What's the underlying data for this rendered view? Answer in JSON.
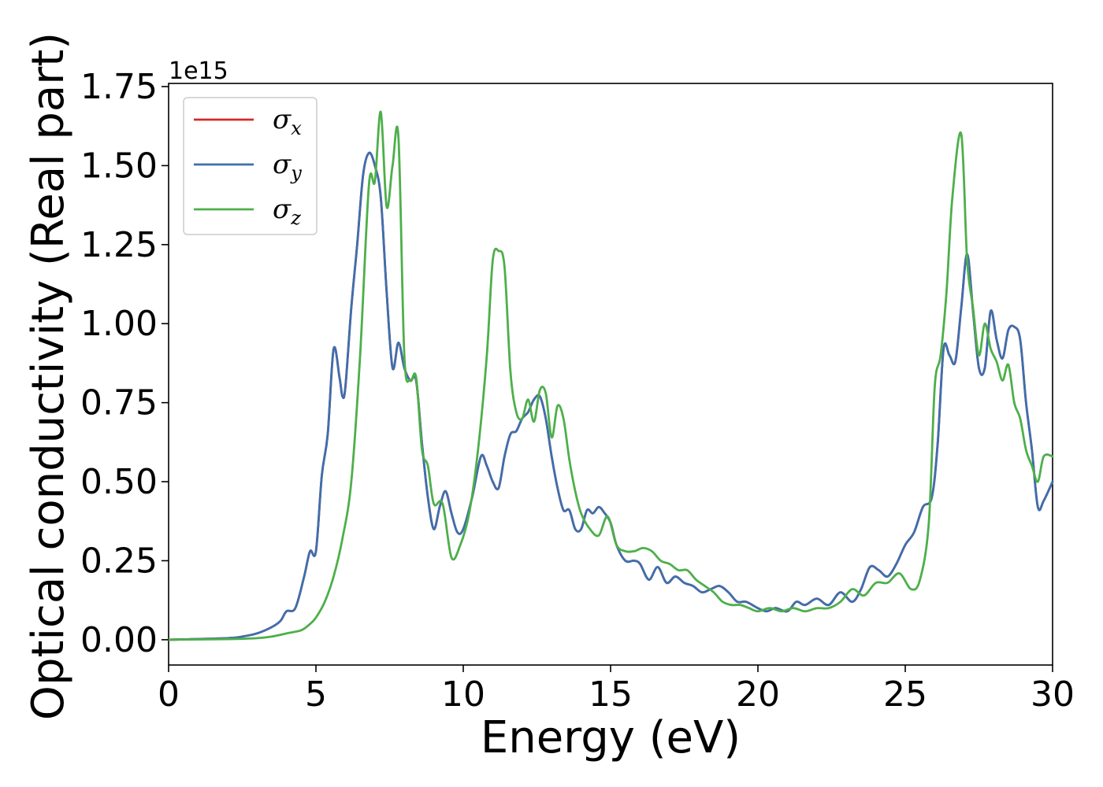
{
  "chart_data": {
    "type": "line",
    "title": "",
    "xlabel": "Energy (eV)",
    "ylabel": "Optical conductivity (Real part)",
    "y_offset_label": "1e15",
    "xlim": [
      0,
      30
    ],
    "ylim": [
      -0.08,
      1.76
    ],
    "xticks": [
      0,
      5,
      10,
      15,
      20,
      25,
      30
    ],
    "xtick_labels": [
      "0",
      "5",
      "10",
      "15",
      "20",
      "25",
      "30"
    ],
    "yticks": [
      0.0,
      0.25,
      0.5,
      0.75,
      1.0,
      1.25,
      1.5,
      1.75
    ],
    "ytick_labels": [
      "0.00",
      "0.25",
      "0.50",
      "0.75",
      "1.00",
      "1.25",
      "1.50",
      "1.75"
    ],
    "grid": false,
    "legend_position": "top-left",
    "series": [
      {
        "name": "σ_x",
        "legend_base": "σ",
        "legend_sub": "x",
        "color": "#d62728",
        "x": [
          0,
          2,
          2.5,
          3,
          3.5,
          3.8,
          4.0,
          4.3,
          4.6,
          4.8,
          5.0,
          5.2,
          5.4,
          5.6,
          5.8,
          5.9,
          6.0,
          6.2,
          6.4,
          6.6,
          6.8,
          7.0,
          7.2,
          7.4,
          7.6,
          7.8,
          8.0,
          8.2,
          8.4,
          8.6,
          8.8,
          9.0,
          9.2,
          9.4,
          9.6,
          9.8,
          10.0,
          10.3,
          10.6,
          10.8,
          11.0,
          11.2,
          11.4,
          11.6,
          11.8,
          12.0,
          12.2,
          12.4,
          12.6,
          12.8,
          13.0,
          13.2,
          13.4,
          13.6,
          13.8,
          14.0,
          14.2,
          14.4,
          14.6,
          14.8,
          15.0,
          15.2,
          15.5,
          15.8,
          16.0,
          16.3,
          16.6,
          16.9,
          17.2,
          17.5,
          17.8,
          18.1,
          18.4,
          18.7,
          19.0,
          19.3,
          19.6,
          20.0,
          20.3,
          20.6,
          21.0,
          21.3,
          21.6,
          22.0,
          22.4,
          22.8,
          23.2,
          23.5,
          23.8,
          24.1,
          24.4,
          24.7,
          25.0,
          25.3,
          25.6,
          25.9,
          26.1,
          26.3,
          26.5,
          26.7,
          26.9,
          27.1,
          27.3,
          27.5,
          27.7,
          27.9,
          28.1,
          28.3,
          28.5,
          28.7,
          28.9,
          29.1,
          29.3,
          29.5,
          29.7,
          30.0
        ],
        "values": [
          0.0,
          0.005,
          0.01,
          0.02,
          0.04,
          0.06,
          0.09,
          0.1,
          0.2,
          0.28,
          0.28,
          0.52,
          0.65,
          0.92,
          0.83,
          0.77,
          0.8,
          1.05,
          1.25,
          1.47,
          1.54,
          1.5,
          1.4,
          1.1,
          0.86,
          0.94,
          0.86,
          0.82,
          0.82,
          0.62,
          0.45,
          0.35,
          0.42,
          0.47,
          0.4,
          0.34,
          0.35,
          0.45,
          0.58,
          0.55,
          0.5,
          0.48,
          0.58,
          0.65,
          0.66,
          0.7,
          0.72,
          0.76,
          0.77,
          0.7,
          0.58,
          0.48,
          0.41,
          0.41,
          0.35,
          0.35,
          0.41,
          0.4,
          0.42,
          0.4,
          0.37,
          0.3,
          0.25,
          0.25,
          0.24,
          0.19,
          0.23,
          0.18,
          0.2,
          0.18,
          0.17,
          0.15,
          0.16,
          0.17,
          0.15,
          0.12,
          0.12,
          0.1,
          0.09,
          0.1,
          0.09,
          0.12,
          0.11,
          0.13,
          0.11,
          0.15,
          0.12,
          0.16,
          0.23,
          0.22,
          0.2,
          0.24,
          0.3,
          0.34,
          0.42,
          0.45,
          0.62,
          0.92,
          0.9,
          0.88,
          1.05,
          1.22,
          1.04,
          0.86,
          0.86,
          1.04,
          0.95,
          0.89,
          0.98,
          0.99,
          0.95,
          0.75,
          0.6,
          0.42,
          0.44,
          0.5
        ]
      },
      {
        "name": "σ_y",
        "legend_base": "σ",
        "legend_sub": "y",
        "color": "#3d6fae",
        "x": [
          0,
          2,
          2.5,
          3,
          3.5,
          3.8,
          4.0,
          4.3,
          4.6,
          4.8,
          5.0,
          5.2,
          5.4,
          5.6,
          5.8,
          5.9,
          6.0,
          6.2,
          6.4,
          6.6,
          6.8,
          7.0,
          7.2,
          7.4,
          7.6,
          7.8,
          8.0,
          8.2,
          8.4,
          8.6,
          8.8,
          9.0,
          9.2,
          9.4,
          9.6,
          9.8,
          10.0,
          10.3,
          10.6,
          10.8,
          11.0,
          11.2,
          11.4,
          11.6,
          11.8,
          12.0,
          12.2,
          12.4,
          12.6,
          12.8,
          13.0,
          13.2,
          13.4,
          13.6,
          13.8,
          14.0,
          14.2,
          14.4,
          14.6,
          14.8,
          15.0,
          15.2,
          15.5,
          15.8,
          16.0,
          16.3,
          16.6,
          16.9,
          17.2,
          17.5,
          17.8,
          18.1,
          18.4,
          18.7,
          19.0,
          19.3,
          19.6,
          20.0,
          20.3,
          20.6,
          21.0,
          21.3,
          21.6,
          22.0,
          22.4,
          22.8,
          23.2,
          23.5,
          23.8,
          24.1,
          24.4,
          24.7,
          25.0,
          25.3,
          25.6,
          25.9,
          26.1,
          26.3,
          26.5,
          26.7,
          26.9,
          27.1,
          27.3,
          27.5,
          27.7,
          27.9,
          28.1,
          28.3,
          28.5,
          28.7,
          28.9,
          29.1,
          29.3,
          29.5,
          29.7,
          30.0
        ],
        "values": [
          0.0,
          0.005,
          0.01,
          0.02,
          0.04,
          0.06,
          0.09,
          0.1,
          0.2,
          0.28,
          0.28,
          0.52,
          0.65,
          0.92,
          0.83,
          0.77,
          0.8,
          1.05,
          1.25,
          1.47,
          1.54,
          1.5,
          1.4,
          1.1,
          0.86,
          0.94,
          0.86,
          0.82,
          0.82,
          0.62,
          0.45,
          0.35,
          0.42,
          0.47,
          0.4,
          0.34,
          0.35,
          0.45,
          0.58,
          0.55,
          0.5,
          0.48,
          0.58,
          0.65,
          0.66,
          0.7,
          0.72,
          0.76,
          0.77,
          0.7,
          0.58,
          0.48,
          0.41,
          0.41,
          0.35,
          0.35,
          0.41,
          0.4,
          0.42,
          0.4,
          0.37,
          0.3,
          0.25,
          0.25,
          0.24,
          0.19,
          0.23,
          0.18,
          0.2,
          0.18,
          0.17,
          0.15,
          0.16,
          0.17,
          0.15,
          0.12,
          0.12,
          0.1,
          0.09,
          0.1,
          0.09,
          0.12,
          0.11,
          0.13,
          0.11,
          0.15,
          0.12,
          0.16,
          0.23,
          0.22,
          0.2,
          0.24,
          0.3,
          0.34,
          0.42,
          0.45,
          0.62,
          0.92,
          0.9,
          0.88,
          1.05,
          1.22,
          1.04,
          0.86,
          0.86,
          1.04,
          0.95,
          0.89,
          0.98,
          0.99,
          0.95,
          0.75,
          0.6,
          0.42,
          0.44,
          0.5
        ]
      },
      {
        "name": "σ_z",
        "legend_base": "σ",
        "legend_sub": "z",
        "color": "#4daf4a",
        "x": [
          0,
          2,
          3,
          3.5,
          4.0,
          4.5,
          4.8,
          5.0,
          5.3,
          5.6,
          5.9,
          6.2,
          6.5,
          6.8,
          7.0,
          7.2,
          7.4,
          7.6,
          7.8,
          8.0,
          8.2,
          8.4,
          8.6,
          8.8,
          9.0,
          9.3,
          9.6,
          9.9,
          10.2,
          10.5,
          10.8,
          11.0,
          11.2,
          11.4,
          11.6,
          11.8,
          12.0,
          12.2,
          12.4,
          12.6,
          12.8,
          13.0,
          13.2,
          13.4,
          13.6,
          13.8,
          14.0,
          14.3,
          14.6,
          14.9,
          15.2,
          15.5,
          15.8,
          16.1,
          16.4,
          16.7,
          17.0,
          17.3,
          17.6,
          17.9,
          18.2,
          18.5,
          18.8,
          19.1,
          19.4,
          19.7,
          20.0,
          20.4,
          20.8,
          21.2,
          21.6,
          22.0,
          22.4,
          22.8,
          23.2,
          23.6,
          24.0,
          24.4,
          24.8,
          25.2,
          25.5,
          25.8,
          26.0,
          26.2,
          26.4,
          26.6,
          26.9,
          27.1,
          27.3,
          27.5,
          27.7,
          27.9,
          28.1,
          28.3,
          28.5,
          28.7,
          28.9,
          29.1,
          29.3,
          29.5,
          29.7,
          30.0
        ],
        "values": [
          0.0,
          0.002,
          0.005,
          0.01,
          0.02,
          0.03,
          0.05,
          0.07,
          0.12,
          0.2,
          0.32,
          0.5,
          0.9,
          1.44,
          1.45,
          1.67,
          1.37,
          1.5,
          1.59,
          0.9,
          0.82,
          0.83,
          0.6,
          0.55,
          0.43,
          0.43,
          0.26,
          0.3,
          0.4,
          0.6,
          0.9,
          1.2,
          1.23,
          1.18,
          0.85,
          0.72,
          0.7,
          0.76,
          0.69,
          0.79,
          0.78,
          0.64,
          0.74,
          0.7,
          0.57,
          0.47,
          0.4,
          0.35,
          0.33,
          0.39,
          0.3,
          0.28,
          0.28,
          0.29,
          0.28,
          0.25,
          0.24,
          0.22,
          0.22,
          0.19,
          0.17,
          0.15,
          0.12,
          0.11,
          0.11,
          0.1,
          0.09,
          0.1,
          0.09,
          0.1,
          0.09,
          0.1,
          0.1,
          0.12,
          0.16,
          0.14,
          0.18,
          0.18,
          0.21,
          0.16,
          0.19,
          0.37,
          0.8,
          0.9,
          1.1,
          1.4,
          1.6,
          1.2,
          1.05,
          0.9,
          1.0,
          0.92,
          0.88,
          0.82,
          0.87,
          0.75,
          0.7,
          0.6,
          0.55,
          0.5,
          0.58,
          0.58
        ]
      }
    ]
  }
}
